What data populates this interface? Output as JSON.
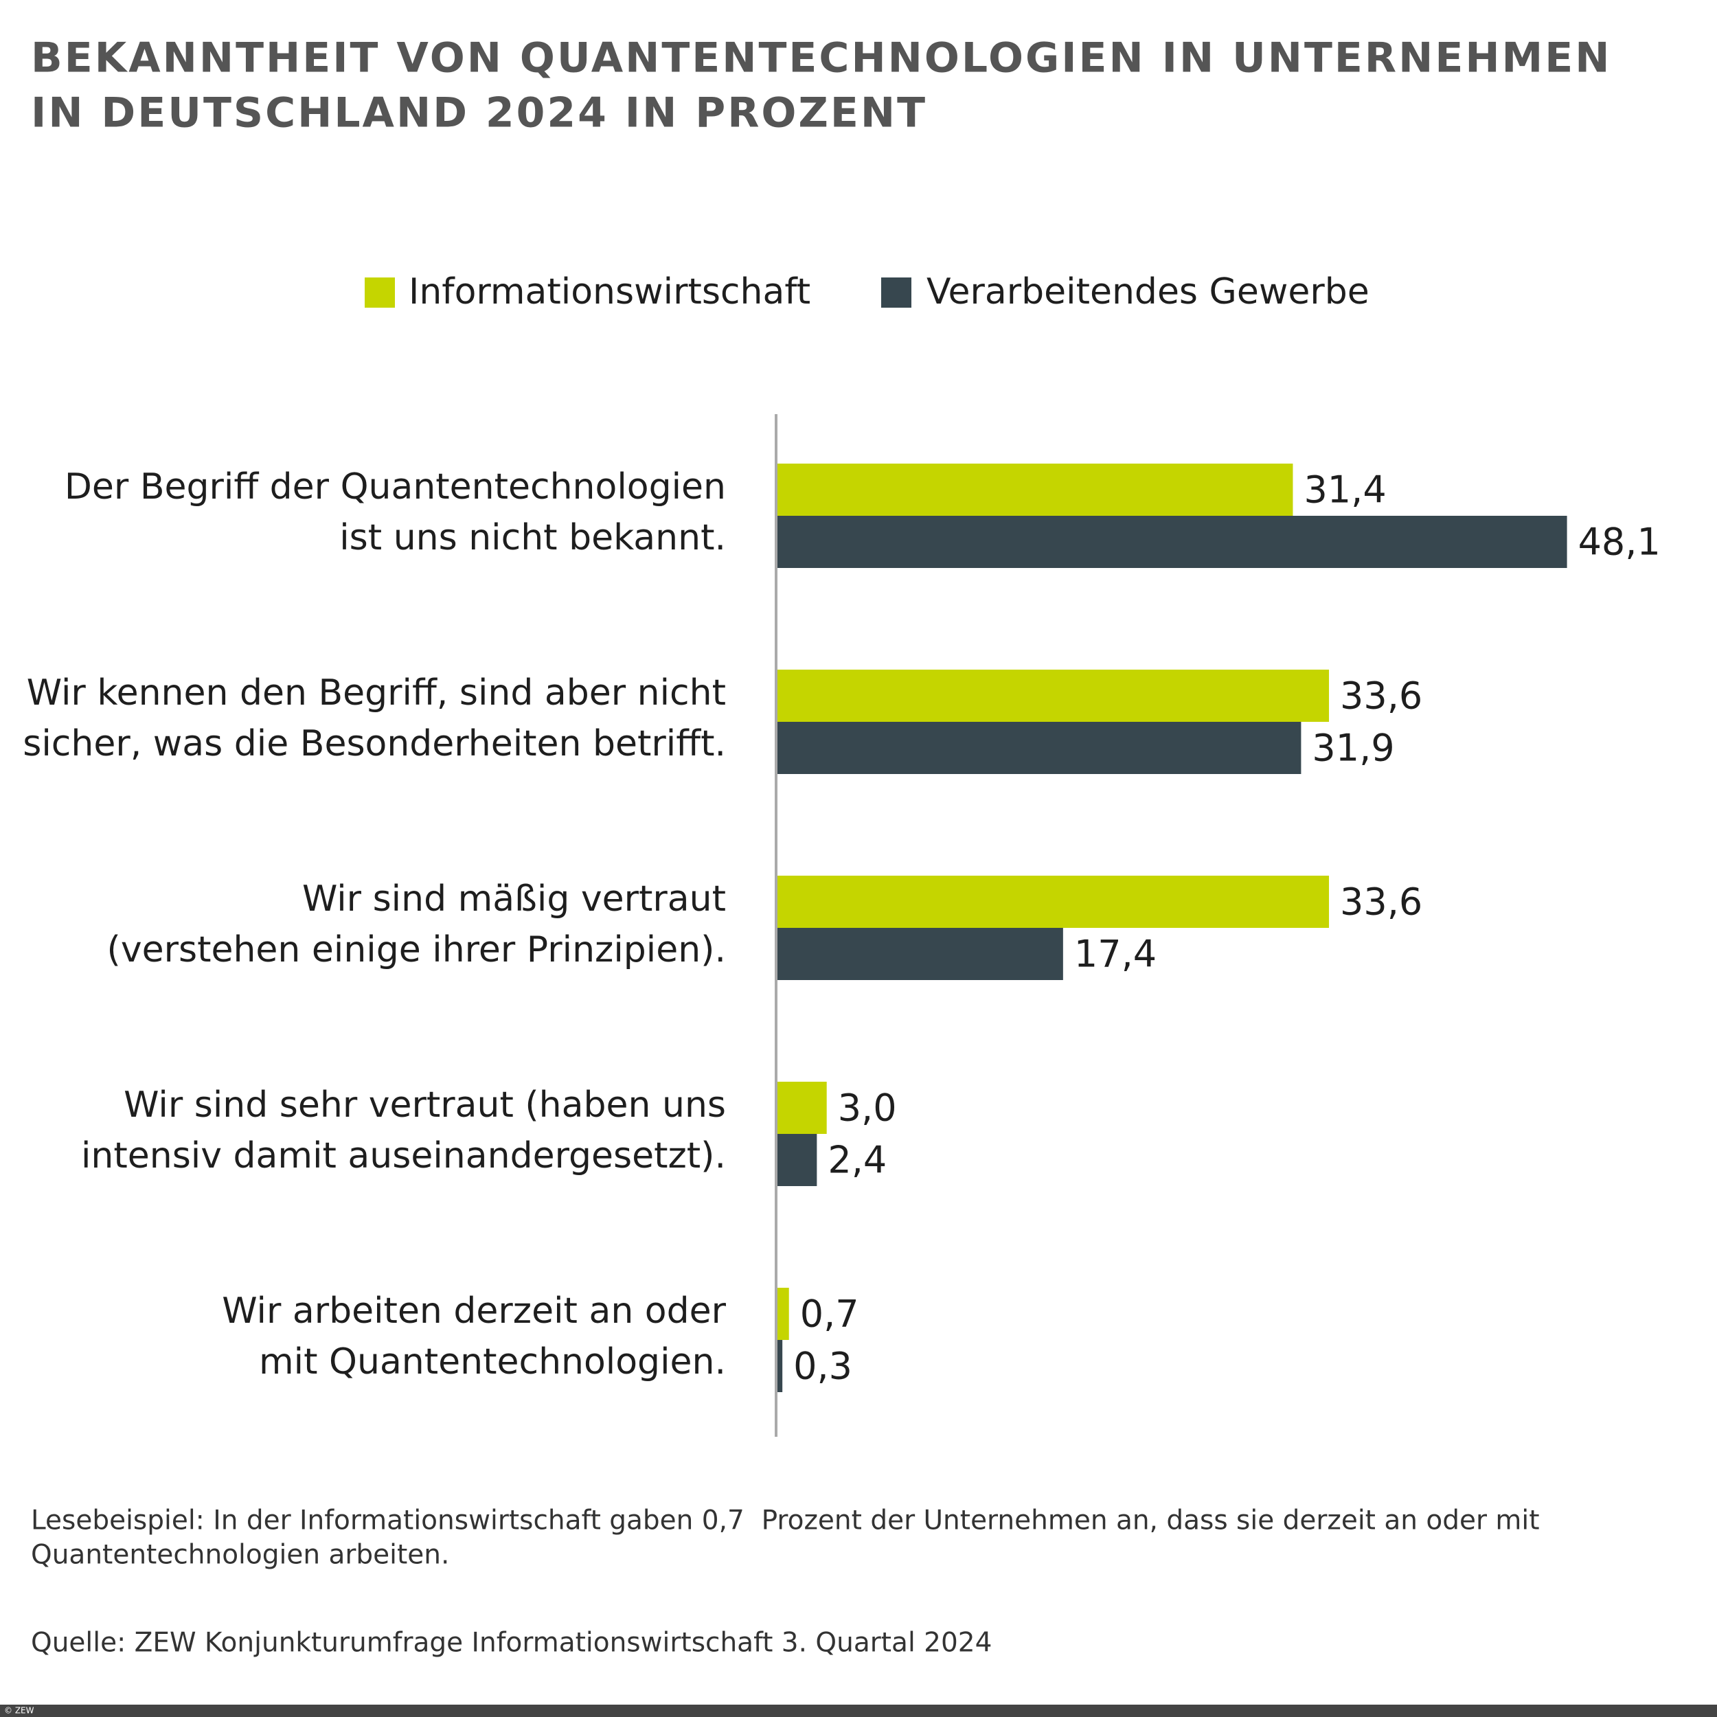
{
  "chart_data": {
    "type": "bar",
    "orientation": "horizontal",
    "title": [
      "BEKANNTHEIT VON QUANTENTECHNOLOGIEN IN UNTERNEHMEN",
      "IN DEUTSCHLAND 2024 IN PROZENT"
    ],
    "categories": [
      [
        "Der Begriff der Quantentechnologien",
        "ist uns nicht bekannt."
      ],
      [
        "Wir kennen den Begriff, sind aber nicht",
        "sicher, was die Besonderheiten betrifft."
      ],
      [
        "Wir sind mäßig vertraut",
        "(verstehen einige ihrer Prinzipien)."
      ],
      [
        "Wir sind sehr vertraut (haben uns",
        "intensiv damit auseinandergesetzt)."
      ],
      [
        "Wir arbeiten derzeit an oder",
        "mit Quantentechnologien."
      ]
    ],
    "series": [
      {
        "name": "Informationswirtschaft",
        "color": "#c5d500",
        "values": [
          31.4,
          33.6,
          33.6,
          3.0,
          0.7
        ],
        "value_labels": [
          "31,4",
          "33,6",
          "33,6",
          "3,0",
          "0,7"
        ]
      },
      {
        "name": "Verarbeitendes Gewerbe",
        "color": "#37474f",
        "values": [
          48.1,
          31.9,
          17.4,
          2.4,
          0.3
        ],
        "value_labels": [
          "48,1",
          "31,9",
          "17,4",
          "2,4",
          "0,3"
        ]
      }
    ],
    "xlim": [
      0,
      50
    ],
    "note": [
      "Lesebeispiel: In der Informationswirtschaft gaben 0,7  Prozent der Unternehmen an, dass sie derzeit an oder mit",
      "Quantentechnologien arbeiten."
    ],
    "source": "Quelle: ZEW Konjunkturumfrage Informationswirtschaft 3. Quartal 2024",
    "copyright": "© ZEW"
  }
}
